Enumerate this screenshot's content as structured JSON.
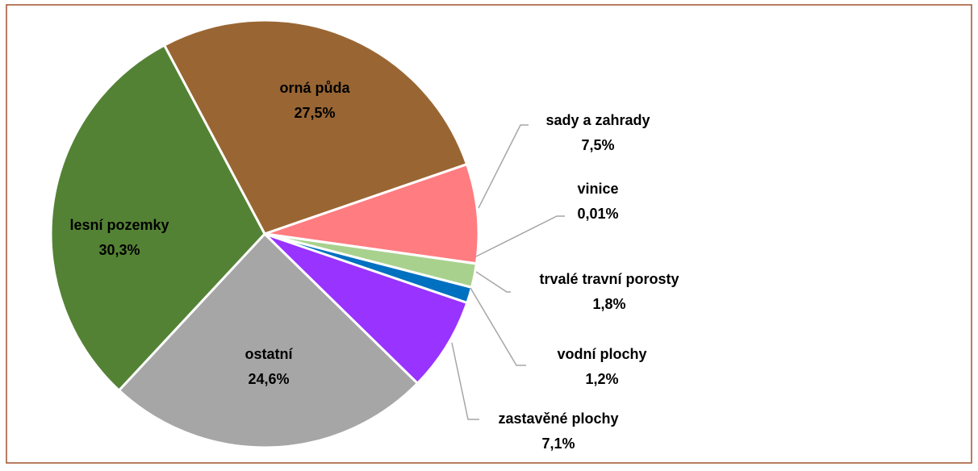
{
  "chart_data": {
    "type": "pie",
    "categories": [
      "orná půda",
      "sady a zahrady",
      "vinice",
      "trvalé travní porosty",
      "vodní plochy",
      "zastavěné plochy",
      "ostatní",
      "lesní pozemky"
    ],
    "values": [
      27.5,
      7.5,
      0.01,
      1.8,
      1.2,
      7.1,
      24.6,
      30.3
    ],
    "value_labels": [
      "27,5%",
      "7,5%",
      "0,01%",
      "1,8%",
      "1,2%",
      "7,1%",
      "24,6%",
      "30,3%"
    ],
    "colors": [
      "#996633",
      "#ff7c80",
      "#c9a0dc",
      "#a9d18e",
      "#0070c0",
      "#9933ff",
      "#a6a6a6",
      "#548235"
    ]
  }
}
